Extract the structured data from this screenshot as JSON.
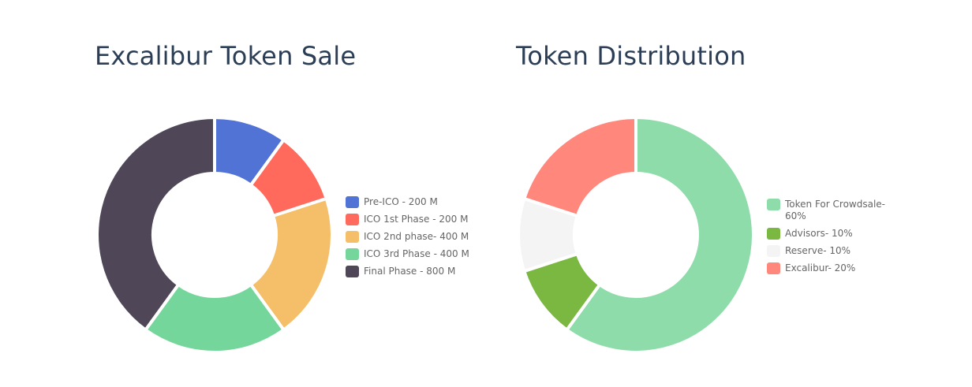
{
  "chart_data": [
    {
      "type": "pie",
      "title": "Excalibur Token Sale",
      "donut": true,
      "legend_position": "right",
      "slices": [
        {
          "label": "Pre-ICO - 200 M",
          "value": 200,
          "color": "#5273d6"
        },
        {
          "label": "ICO 1st Phase - 200 M",
          "value": 200,
          "color": "#ff6a5c"
        },
        {
          "label": "ICO 2nd phase- 400 M",
          "value": 400,
          "color": "#f5be68"
        },
        {
          "label": "ICO 3rd Phase - 400 M",
          "value": 400,
          "color": "#75d69b"
        },
        {
          "label": "Final Phase - 800 M",
          "value": 800,
          "color": "#4f4758"
        }
      ]
    },
    {
      "type": "pie",
      "title": "Token Distribution",
      "donut": true,
      "legend_position": "right",
      "slices": [
        {
          "label": "Token For Crowdsale- 60%",
          "value": 60,
          "color": "#8ddcaa",
          "color2": "#7fd7a5"
        },
        {
          "label": "Advisors- 10%",
          "value": 10,
          "color": "#7ab842"
        },
        {
          "label": "Reserve- 10%",
          "value": 10,
          "color": "#f4f4f4"
        },
        {
          "label": "Excalibur- 20%",
          "value": 20,
          "color": "#ff877b"
        }
      ]
    }
  ]
}
